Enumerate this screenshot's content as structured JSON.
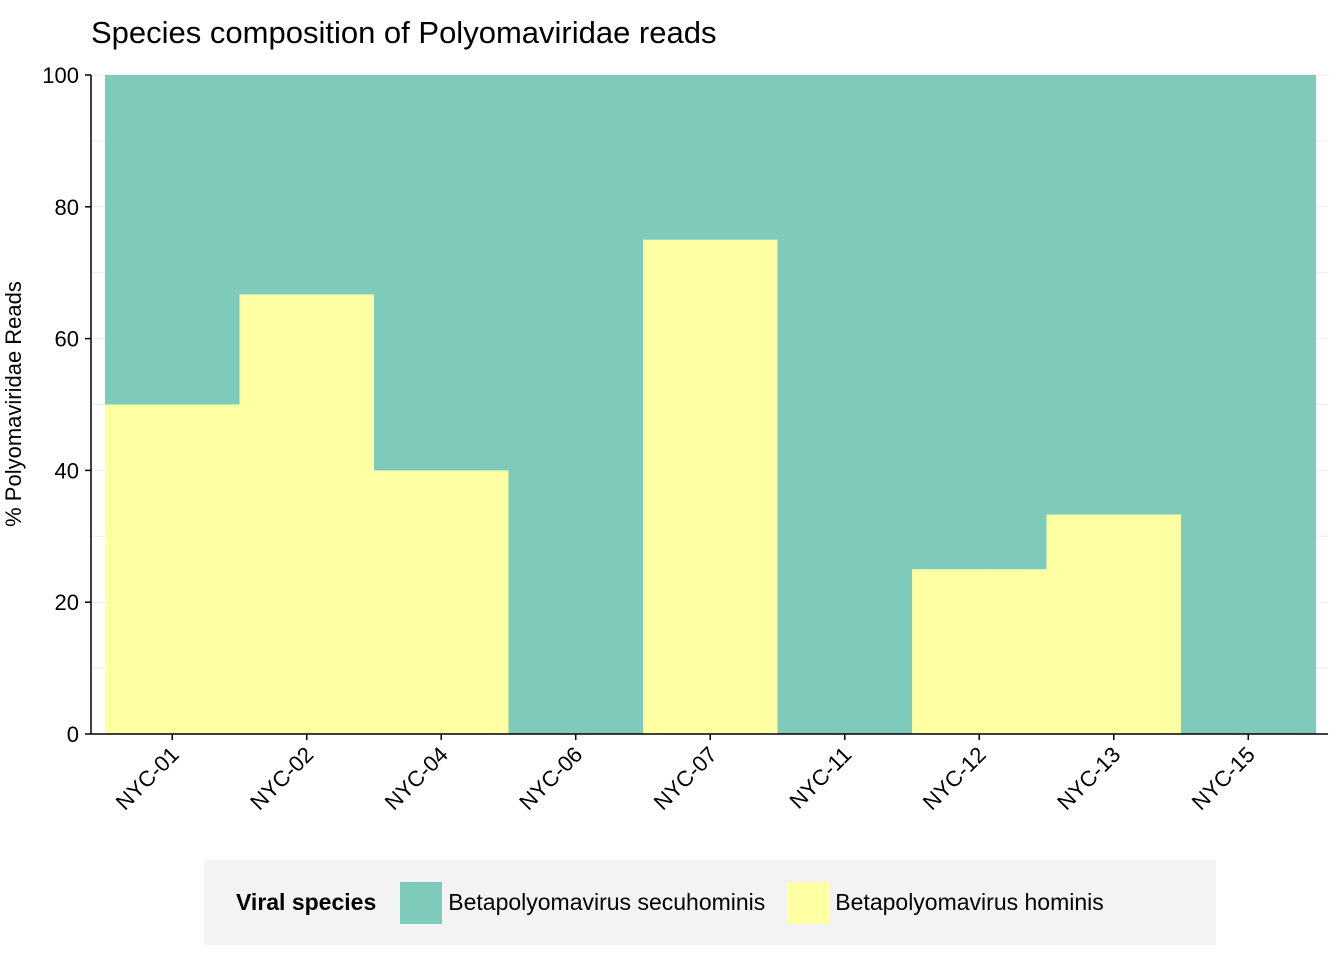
{
  "chart_data": {
    "type": "bar",
    "stacked": true,
    "title": "Species composition of Polyomaviridae reads",
    "xlabel": "",
    "ylabel": "% Polyomaviridae Reads",
    "ylim": [
      0,
      100
    ],
    "yticks": [
      0,
      20,
      40,
      60,
      80,
      100
    ],
    "categories": [
      "NYC-01",
      "NYC-02",
      "NYC-04",
      "NYC-06",
      "NYC-07",
      "NYC-11",
      "NYC-12",
      "NYC-13",
      "NYC-15"
    ],
    "series": [
      {
        "name": "Betapolyomavirus hominis",
        "color": "#ffffa3",
        "values": [
          50,
          66.7,
          40,
          0,
          75,
          0,
          25,
          33.3,
          0
        ]
      },
      {
        "name": "Betapolyomavirus secuhominis",
        "color": "#7fcbbb",
        "values": [
          50,
          33.3,
          60,
          100,
          25,
          100,
          75,
          66.7,
          100
        ]
      }
    ],
    "legend": {
      "title": "Viral species",
      "position": "bottom",
      "entries": [
        {
          "label": "Betapolyomavirus secuhominis",
          "color": "#7fcbbb"
        },
        {
          "label": "Betapolyomavirus hominis",
          "color": "#ffffa3"
        }
      ]
    }
  }
}
